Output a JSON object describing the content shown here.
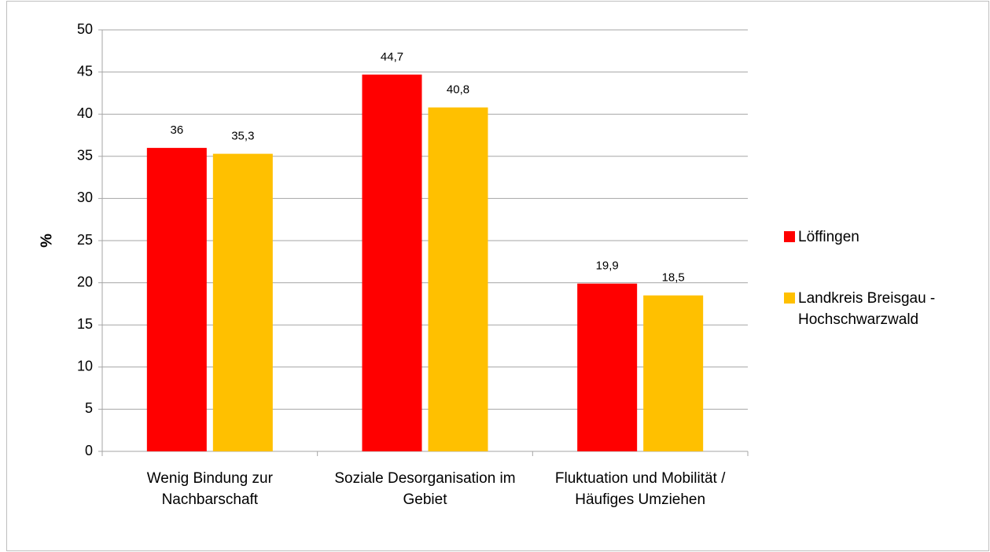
{
  "chart_data": {
    "type": "bar",
    "y_label": "%",
    "categories": [
      "Wenig Bindung zur Nachbarschaft",
      "Soziale Desorganisation im Gebiet",
      "Fluktuation und Mobilität / Häufiges Umziehen"
    ],
    "series": [
      {
        "name": "Löffingen",
        "color": "#ff0000",
        "values": [
          36,
          44.7,
          19.9
        ],
        "value_labels": [
          "36",
          "44,7",
          "19,9"
        ]
      },
      {
        "name": "Landkreis Breisgau - Hochschwarzwald",
        "color": "#ffc000",
        "values": [
          35.3,
          40.8,
          18.5
        ],
        "value_labels": [
          "35,3",
          "40,8",
          "18,5"
        ]
      }
    ],
    "ylim": [
      0,
      50
    ],
    "yticks": [
      0,
      5,
      10,
      15,
      20,
      25,
      30,
      35,
      40,
      45,
      50
    ],
    "grid": true,
    "legend": "right"
  }
}
